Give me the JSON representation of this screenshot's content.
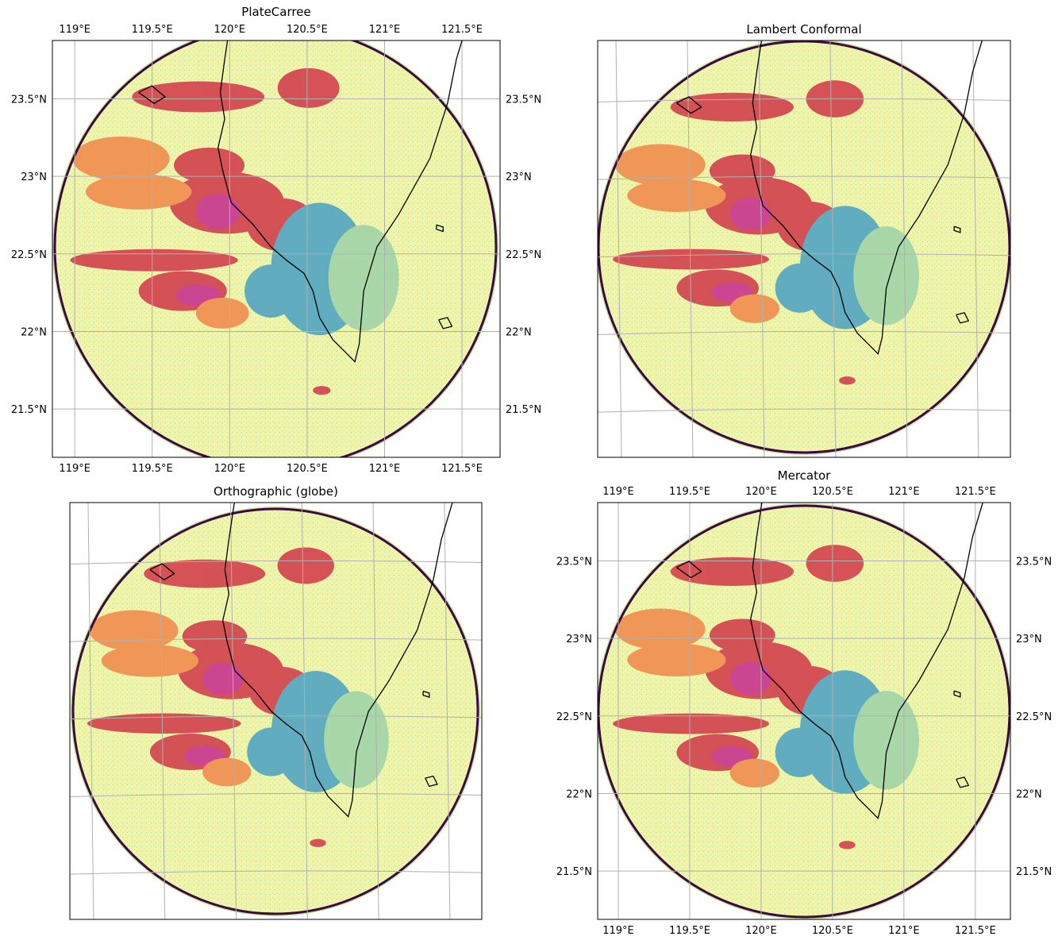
{
  "panels": [
    {
      "title": "PlateCarree",
      "lon_ticks": [
        "119°E",
        "119.5°E",
        "120°E",
        "120.5°E",
        "121°E",
        "121.5°E"
      ],
      "lat_ticks": [
        "23.5°N",
        "23°N",
        "22.5°N",
        "22°N",
        "21.5°N"
      ],
      "labels": "all-sides"
    },
    {
      "title": "Lambert Conformal",
      "labels": "none"
    },
    {
      "title": "Orthographic (globe)",
      "labels": "none"
    },
    {
      "title": "Mercator",
      "lon_ticks": [
        "119°E",
        "119.5°E",
        "120°E",
        "120.5°E",
        "121°E",
        "121.5°E"
      ],
      "lat_ticks": [
        "23.5°N",
        "23°N",
        "22.5°N",
        "22°N",
        "21.5°N"
      ],
      "labels": "all-sides"
    }
  ],
  "colors": {
    "background_field": "#f2f5a8",
    "range_ring": "#3b0a45",
    "coastline": "#000000",
    "gridline": "#b0b0b0",
    "echo_weak": "#9fd3a8",
    "echo_light": "#4fa3c4",
    "echo_moderate": "#f08a4b",
    "echo_strong": "#d13b4a",
    "echo_intense": "#c72f8f"
  }
}
